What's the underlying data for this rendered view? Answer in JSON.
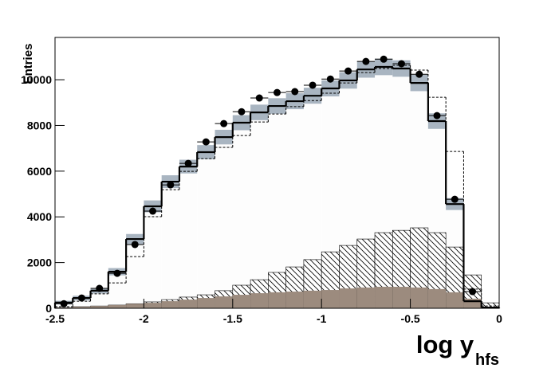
{
  "chart_data": {
    "type": "histogram",
    "y_label": "Entries",
    "x_label": "log y",
    "x_label_sub": "hfs",
    "bins": [
      -2.5,
      -2.4,
      -2.3,
      -2.2,
      -2.1,
      -2.0,
      -1.9,
      -1.8,
      -1.7,
      -1.6,
      -1.5,
      -1.4,
      -1.3,
      -1.2,
      -1.1,
      -1.0,
      -0.9,
      -0.8,
      -0.7,
      -0.6,
      -0.5,
      -0.4,
      -0.3,
      -0.2,
      -0.1,
      0
    ],
    "xlim": [
      -2.5,
      0
    ],
    "xticks": [
      -2.5,
      -2,
      -1.5,
      -1,
      -0.5,
      0
    ],
    "ylim": [
      0,
      11850
    ],
    "yticks": [
      0,
      2000,
      4000,
      6000,
      8000,
      10000
    ],
    "series": [
      {
        "style": "total",
        "color": "#000000",
        "fill": "#fdfdfd",
        "band_color": "#a9b5c1",
        "values": [
          250,
          450,
          770,
          1600,
          3030,
          4460,
          5540,
          6200,
          6830,
          7490,
          8120,
          8570,
          8850,
          9060,
          9300,
          9620,
          9970,
          10450,
          10560,
          10490,
          9860,
          8190,
          4560,
          310,
          30
        ],
        "errors": [
          80,
          100,
          120,
          160,
          220,
          260,
          280,
          300,
          310,
          320,
          330,
          340,
          340,
          350,
          350,
          350,
          360,
          360,
          360,
          360,
          360,
          340,
          260,
          60,
          20
        ]
      },
      {
        "style": "dashed",
        "color": "#000000",
        "values": [
          70,
          310,
          630,
          1110,
          2260,
          4010,
          5190,
          5990,
          6550,
          7040,
          7560,
          8150,
          8500,
          8820,
          9090,
          9410,
          9860,
          10310,
          10490,
          10630,
          10420,
          9230,
          6860,
          840,
          100
        ]
      },
      {
        "style": "hatched",
        "color": "#000000",
        "values": [
          30,
          70,
          100,
          140,
          200,
          280,
          380,
          490,
          590,
          770,
          1010,
          1250,
          1570,
          1810,
          2130,
          2470,
          2750,
          3030,
          3310,
          3410,
          3520,
          3310,
          2680,
          1460,
          240
        ]
      },
      {
        "style": "filled",
        "color": "#9c8b7e",
        "values": [
          30,
          70,
          100,
          140,
          200,
          240,
          310,
          380,
          450,
          520,
          590,
          660,
          700,
          730,
          770,
          800,
          870,
          910,
          940,
          940,
          910,
          840,
          700,
          420,
          70
        ]
      },
      {
        "style": "points",
        "color": "#000000",
        "values": [
          200,
          450,
          870,
          1530,
          2790,
          4250,
          5400,
          6340,
          7280,
          8080,
          8600,
          9200,
          9440,
          9480,
          9760,
          10030,
          10380,
          10800,
          10900,
          10700,
          10240,
          8430,
          4770,
          730,
          0
        ]
      }
    ]
  }
}
